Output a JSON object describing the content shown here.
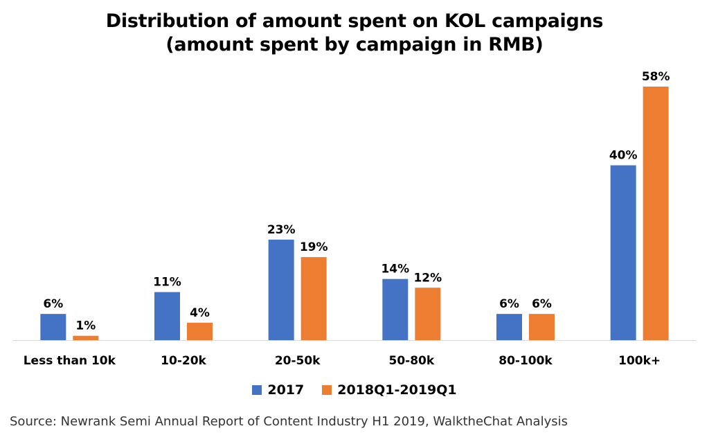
{
  "title_line1": "Distribution of amount spent on KOL campaigns",
  "title_line2": "(amount spent by campaign in RMB)",
  "source": "Source: Newrank Semi Annual Report of Content Industry H1 2019, WalktheChat Analysis",
  "chart_data": {
    "type": "bar",
    "title": "Distribution of amount spent on KOL campaigns (amount spent by campaign in RMB)",
    "categories": [
      "Less than 10k",
      "10-20k",
      "20-50k",
      "50-80k",
      "80-100k",
      "100k+"
    ],
    "series": [
      {
        "name": "2017",
        "color": "#4472C4",
        "values": [
          6,
          11,
          23,
          14,
          6,
          40
        ],
        "labels": [
          "6%",
          "11%",
          "23%",
          "14%",
          "6%",
          "40%"
        ]
      },
      {
        "name": "2018Q1-2019Q1",
        "color": "#ED7D31",
        "values": [
          1,
          4,
          19,
          12,
          6,
          58
        ],
        "labels": [
          "1%",
          "4%",
          "19%",
          "12%",
          "6%",
          "58%"
        ]
      }
    ],
    "ylim": [
      0,
      58
    ],
    "grid": false,
    "legend": "bottom"
  }
}
